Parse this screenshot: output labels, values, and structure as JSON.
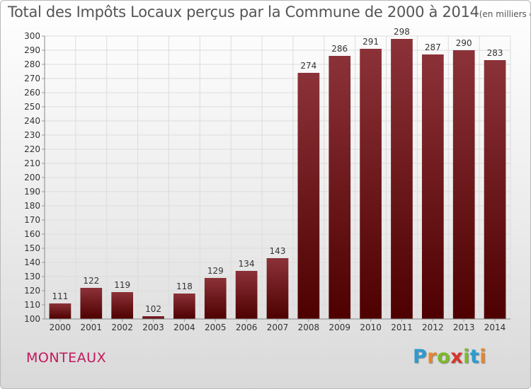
{
  "chart_data": {
    "type": "bar",
    "title": "Total des Impôts Locaux perçus par la Commune de 2000 à 2014",
    "unit_label": "(en milliers d'€)",
    "categories": [
      "2000",
      "2001",
      "2002",
      "2003",
      "2004",
      "2005",
      "2006",
      "2007",
      "2008",
      "2009",
      "2010",
      "2011",
      "2012",
      "2013",
      "2014"
    ],
    "values": [
      111,
      122,
      119,
      102,
      118,
      129,
      134,
      143,
      274,
      286,
      291,
      298,
      287,
      290,
      283
    ],
    "ylim": [
      100,
      300
    ],
    "yticks": [
      100,
      110,
      120,
      130,
      140,
      150,
      160,
      170,
      180,
      190,
      200,
      210,
      220,
      230,
      240,
      250,
      260,
      270,
      280,
      290,
      300
    ],
    "xlabel": "",
    "ylabel": "",
    "grid": true,
    "bar_color_top": "#8b3238",
    "bar_color_bottom": "#4e0000"
  },
  "footer": {
    "commune": "MONTEAUX",
    "brand": "Proxiti"
  },
  "brand_colors": [
    "#2e9ad0",
    "#e8862a",
    "#7cba2a",
    "#d9342b",
    "#7cba2a",
    "#2e9ad0",
    "#e8862a"
  ]
}
